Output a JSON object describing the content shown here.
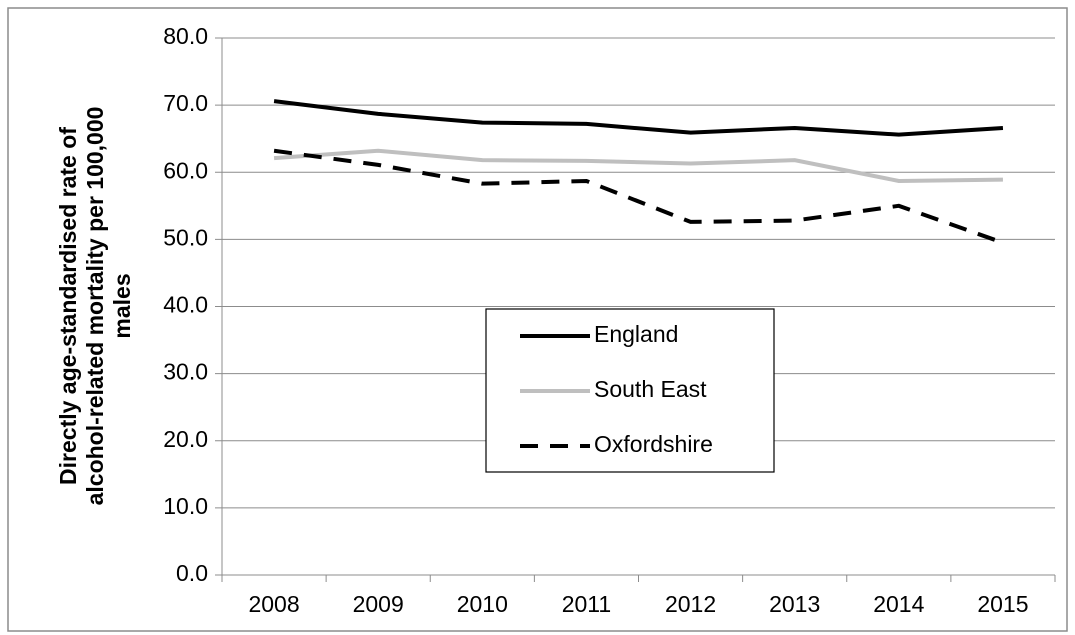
{
  "chart_data": {
    "type": "line",
    "y_label": [
      "Directly age-standardised rate of",
      "alcohol-related mortality per 100,000",
      "males"
    ],
    "categories": [
      "2008",
      "2009",
      "2010",
      "2011",
      "2012",
      "2013",
      "2014",
      "2015"
    ],
    "series": [
      {
        "name": "England",
        "color": "#000000",
        "dashed": false,
        "values": [
          70.6,
          68.7,
          67.4,
          67.2,
          65.9,
          66.6,
          65.6,
          66.6
        ]
      },
      {
        "name": "South East",
        "color": "#bfbfbf",
        "dashed": false,
        "values": [
          62.1,
          63.2,
          61.8,
          61.7,
          61.3,
          61.8,
          58.7,
          58.9
        ]
      },
      {
        "name": "Oxfordshire",
        "color": "#000000",
        "dashed": true,
        "values": [
          63.2,
          61.1,
          58.3,
          58.7,
          52.6,
          52.8,
          55.0,
          49.5
        ]
      }
    ],
    "ylim": [
      0,
      80
    ],
    "yticks": [
      {
        "value": 0,
        "label": "0.0"
      },
      {
        "value": 10,
        "label": "10.0"
      },
      {
        "value": 20,
        "label": "20.0"
      },
      {
        "value": 30,
        "label": "30.0"
      },
      {
        "value": 40,
        "label": "40.0"
      },
      {
        "value": 50,
        "label": "50.0"
      },
      {
        "value": 60,
        "label": "60.0"
      },
      {
        "value": 70,
        "label": "70.0"
      },
      {
        "value": 80,
        "label": "80.0"
      }
    ],
    "grid": true,
    "legend": "center"
  }
}
